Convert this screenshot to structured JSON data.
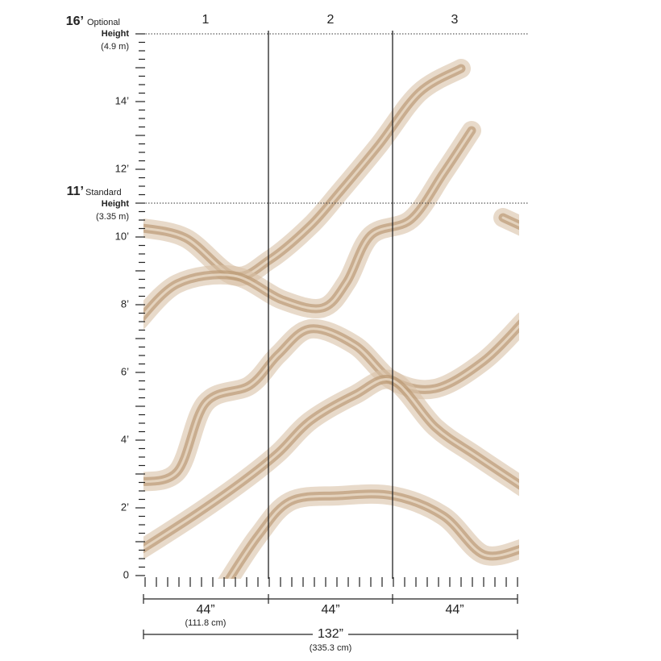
{
  "panels": [
    "1",
    "2",
    "3"
  ],
  "optional_height": {
    "value": "16’",
    "line1": "Optional",
    "line2": "Height",
    "metric": "(4.9 m)"
  },
  "standard_height": {
    "value": "11’",
    "line1": "Standard",
    "line2": "Height",
    "metric": "(3.35 m)"
  },
  "height_labels": [
    "0",
    "2’",
    "4’",
    "6’",
    "8’",
    "10’",
    "12’",
    "14’"
  ],
  "widths": {
    "panels": [
      "44”",
      "44”",
      "44”"
    ],
    "panel_metric": "(111.8 cm)",
    "total": "132”",
    "total_metric": "(335.3 cm)"
  }
}
